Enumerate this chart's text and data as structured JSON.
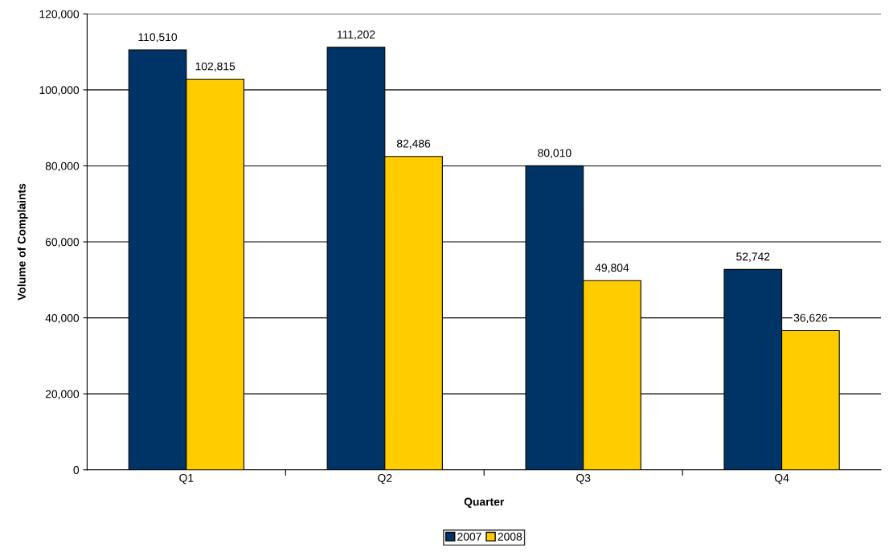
{
  "chart_data": {
    "type": "bar",
    "xlabel": "Quarter",
    "ylabel": "Volume of Complaints",
    "categories": [
      "Q1",
      "Q2",
      "Q3",
      "Q4"
    ],
    "series": [
      {
        "name": "2007",
        "color": "#003366",
        "values": [
          110510,
          111202,
          80010,
          52742
        ],
        "value_labels": [
          "110,510",
          "111,202",
          "80,010",
          "52,742"
        ]
      },
      {
        "name": "2008",
        "color": "#ffcc00",
        "values": [
          102815,
          82486,
          49804,
          36626
        ],
        "value_labels": [
          "102,815",
          "82,486",
          "49,804",
          "36,626"
        ]
      }
    ],
    "ylim": [
      0,
      120000
    ],
    "yticks": [
      0,
      {
        "value": 20000,
        "label": "20,000"
      },
      {
        "value": 40000,
        "label": "40,000"
      },
      {
        "value": 60000,
        "label": "60,000"
      },
      {
        "value": 80000,
        "label": "80,000"
      },
      {
        "value": 100000,
        "label": "100,000"
      },
      {
        "value": 120000,
        "label": "120,000"
      }
    ],
    "grid": "y",
    "legend": "bottom"
  }
}
